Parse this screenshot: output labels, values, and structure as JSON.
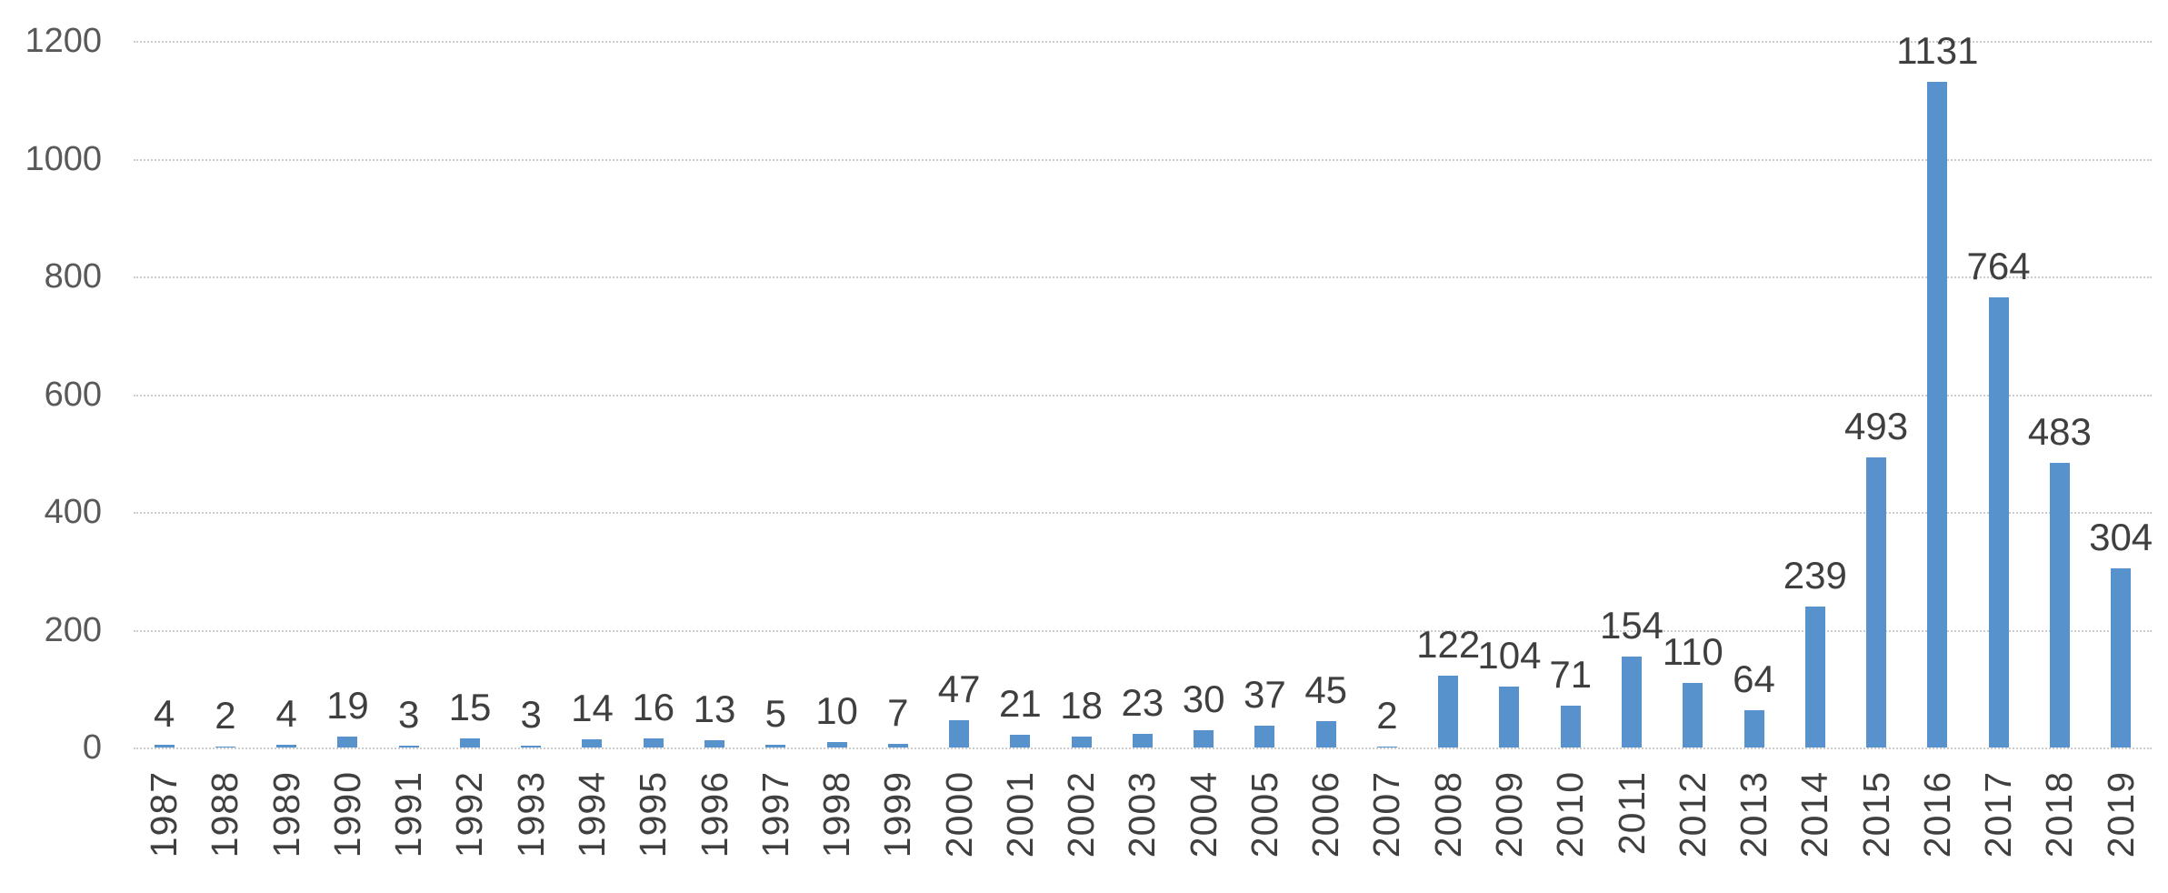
{
  "chart_data": {
    "type": "bar",
    "title": "",
    "xlabel": "",
    "ylabel": "",
    "categories": [
      "1987",
      "1988",
      "1989",
      "1990",
      "1991",
      "1992",
      "1993",
      "1994",
      "1995",
      "1996",
      "1997",
      "1998",
      "1999",
      "2000",
      "2001",
      "2002",
      "2003",
      "2004",
      "2005",
      "2006",
      "2007",
      "2008",
      "2009",
      "2010",
      "2011",
      "2012",
      "2013",
      "2014",
      "2015",
      "2016",
      "2017",
      "2018",
      "2019"
    ],
    "values": [
      4,
      2,
      4,
      19,
      3,
      15,
      3,
      14,
      16,
      13,
      5,
      10,
      7,
      47,
      21,
      18,
      23,
      30,
      37,
      45,
      2,
      122,
      104,
      71,
      154,
      110,
      64,
      239,
      493,
      1131,
      764,
      483,
      304
    ],
    "ylim": [
      0,
      1200
    ],
    "yticks": [
      0,
      200,
      400,
      600,
      800,
      1000,
      1200
    ],
    "grid": true,
    "legend": false,
    "data_labels": true,
    "bar_color": "#5792CD",
    "gridline_color": "#cccccc",
    "data_label_color": "#3F3F3F",
    "y_axis_label_color": "#595959",
    "x_axis_label_color": "#404040"
  }
}
